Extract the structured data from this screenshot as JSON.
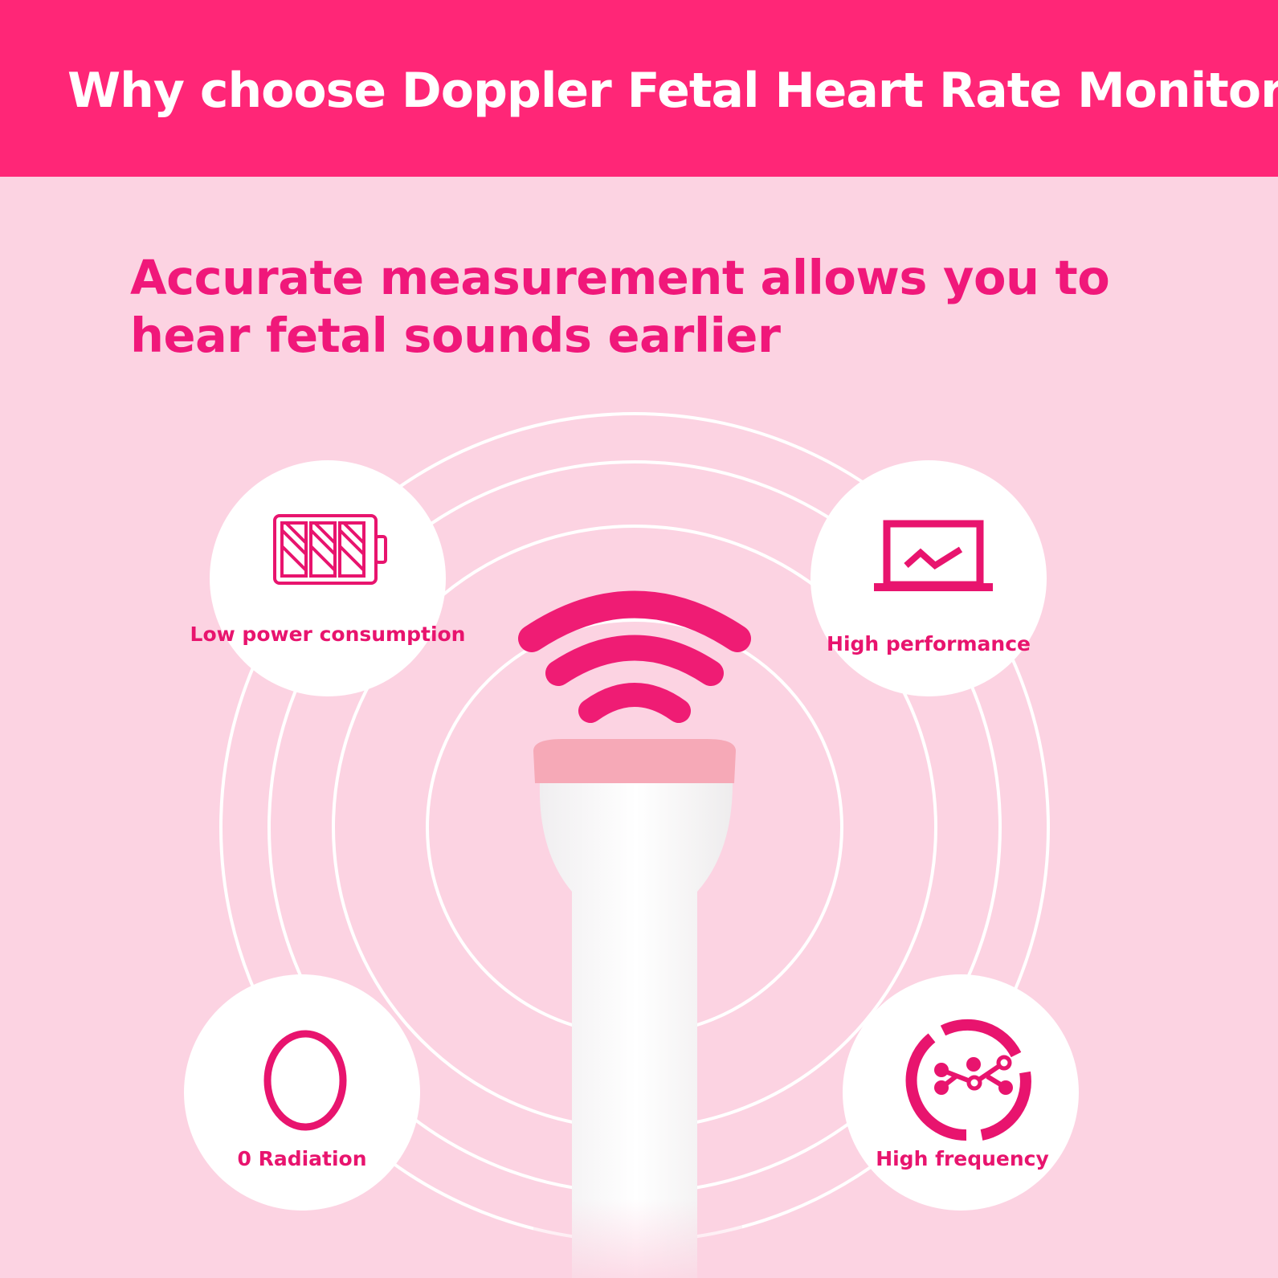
{
  "header": {
    "title": "Why choose Doppler Fetal Heart Rate Monitor"
  },
  "headline": {
    "line1": "Accurate measurement allows you to",
    "line2": "hear fetal sounds earlier"
  },
  "features": [
    {
      "label": "Low power consumption",
      "icon": "battery-icon"
    },
    {
      "label": "High performance",
      "icon": "laptop-chart-icon"
    },
    {
      "label": "0 Radiation",
      "icon": "zero-ring-icon"
    },
    {
      "label": "High frequency",
      "icon": "network-cycle-icon"
    }
  ],
  "colors": {
    "header": "#ff2677",
    "background": "#fcd3e2",
    "accent": "#f0187a"
  }
}
